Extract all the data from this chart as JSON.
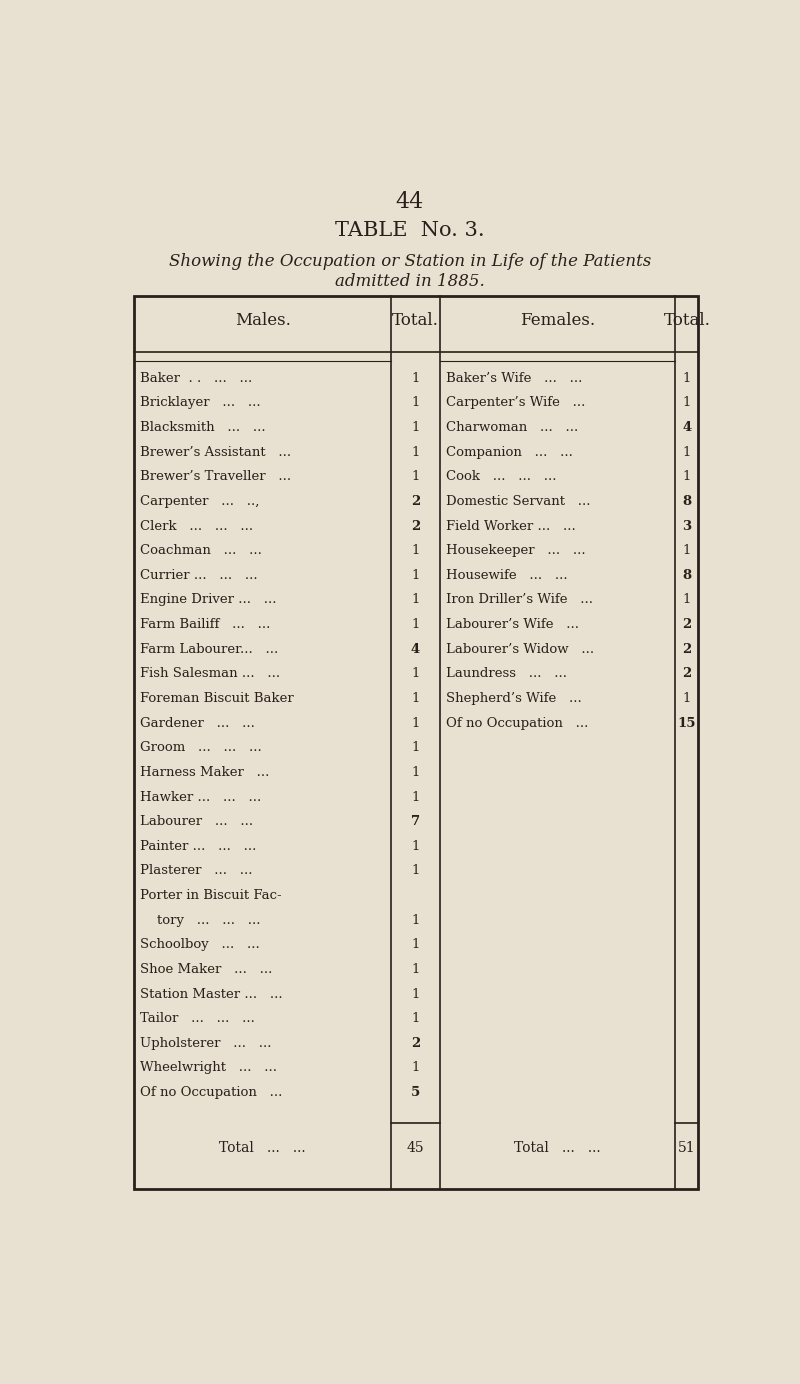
{
  "page_number": "44",
  "title": "TABLE  No. 3.",
  "subtitle_line1": "Showing the Occupation or Station in Life of the Patients",
  "subtitle_line2": "admitted in 1885.",
  "background_color": "#e8e0d0",
  "text_color": "#2a1f1a",
  "males": [
    [
      "Baker  . .   ...   ...",
      "1"
    ],
    [
      "Bricklayer   ...   ...",
      "1"
    ],
    [
      "Blacksmith   ...   ...",
      "1"
    ],
    [
      "Brewer’s Assistant   ...",
      "1"
    ],
    [
      "Brewer’s Traveller   ...",
      "1"
    ],
    [
      "Carpenter   ...   ..,",
      "2"
    ],
    [
      "Clerk   ...   ...   ...",
      "2"
    ],
    [
      "Coachman   ...   ...",
      "1"
    ],
    [
      "Currier ...   ...   ...",
      "1"
    ],
    [
      "Engine Driver ...   ...",
      "1"
    ],
    [
      "Farm Bailiff   ...   ...",
      "1"
    ],
    [
      "Farm Labourer...   ...",
      "4"
    ],
    [
      "Fish Salesman ...   ...",
      "1"
    ],
    [
      "Foreman Biscuit Baker",
      "1"
    ],
    [
      "Gardener   ...   ...",
      "1"
    ],
    [
      "Groom   ...   ...   ...",
      "1"
    ],
    [
      "Harness Maker   ...",
      "1"
    ],
    [
      "Hawker ...   ...   ...",
      "1"
    ],
    [
      "Labourer   ...   ...",
      "7"
    ],
    [
      "Painter ...   ...   ...",
      "1"
    ],
    [
      "Plasterer   ...   ...",
      "1"
    ],
    [
      "Porter in Biscuit Fac-",
      ""
    ],
    [
      "    tory   ...   ...   ...",
      "1"
    ],
    [
      "Schoolboy   ...   ...",
      "1"
    ],
    [
      "Shoe Maker   ...   ...",
      "1"
    ],
    [
      "Station Master ...   ...",
      "1"
    ],
    [
      "Tailor   ...   ...   ...",
      "1"
    ],
    [
      "Upholsterer   ...   ...",
      "2"
    ],
    [
      "Wheelwright   ...   ...",
      "1"
    ],
    [
      "Of no Occupation   ...",
      "5"
    ]
  ],
  "females": [
    [
      "Baker’s Wife   ...   ...",
      "1"
    ],
    [
      "Carpenter’s Wife   ...",
      "1"
    ],
    [
      "Charwoman   ...   ...",
      "4"
    ],
    [
      "Companion   ...   ...",
      "1"
    ],
    [
      "Cook   ...   ...   ...",
      "1"
    ],
    [
      "Domestic Servant   ...",
      "8"
    ],
    [
      "Field Worker ...   ...",
      "3"
    ],
    [
      "Housekeeper   ...   ...",
      "1"
    ],
    [
      "Housewife   ...   ...",
      "8"
    ],
    [
      "Iron Driller’s Wife   ...",
      "1"
    ],
    [
      "Labourer’s Wife   ...",
      "2"
    ],
    [
      "Labourer’s Widow   ...",
      "2"
    ],
    [
      "Laundress   ...   ...",
      "2"
    ],
    [
      "Shepherd’s Wife   ...",
      "1"
    ],
    [
      "Of no Occupation   ...",
      "15"
    ]
  ],
  "male_total": "45",
  "female_total": "51"
}
